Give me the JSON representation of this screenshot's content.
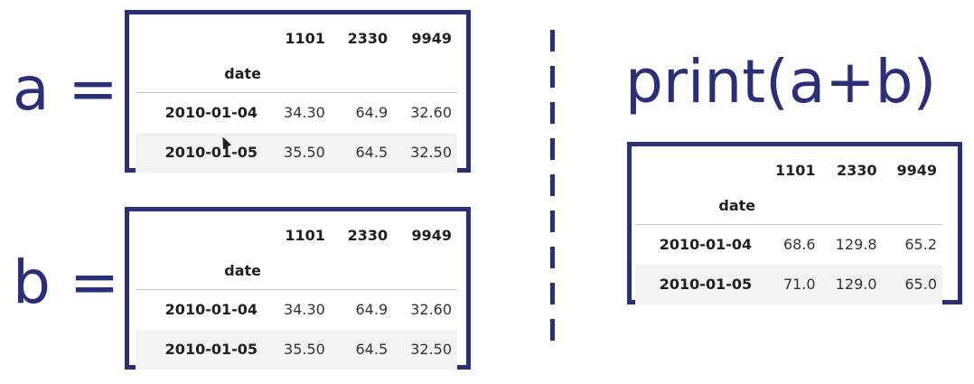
{
  "labels": {
    "a": "a =",
    "b": "b =",
    "result": "print(a+b)"
  },
  "tables": {
    "a": {
      "columns": [
        "1101",
        "2330",
        "9949"
      ],
      "index_name": "date",
      "rows": [
        {
          "date": "2010-01-04",
          "values": [
            "34.30",
            "64.9",
            "32.60"
          ]
        },
        {
          "date": "2010-01-05",
          "values": [
            "35.50",
            "64.5",
            "32.50"
          ]
        }
      ]
    },
    "b": {
      "columns": [
        "1101",
        "2330",
        "9949"
      ],
      "index_name": "date",
      "rows": [
        {
          "date": "2010-01-04",
          "values": [
            "34.30",
            "64.9",
            "32.60"
          ]
        },
        {
          "date": "2010-01-05",
          "values": [
            "35.50",
            "64.5",
            "32.50"
          ]
        }
      ]
    },
    "result": {
      "columns": [
        "1101",
        "2330",
        "9949"
      ],
      "index_name": "date",
      "rows": [
        {
          "date": "2010-01-04",
          "values": [
            "68.6",
            "129.8",
            "65.2"
          ]
        },
        {
          "date": "2010-01-05",
          "values": [
            "71.0",
            "129.0",
            "65.0"
          ]
        }
      ]
    }
  },
  "colors": {
    "accent": "#2b2f7a",
    "alt_row": "#f3f3f3"
  }
}
